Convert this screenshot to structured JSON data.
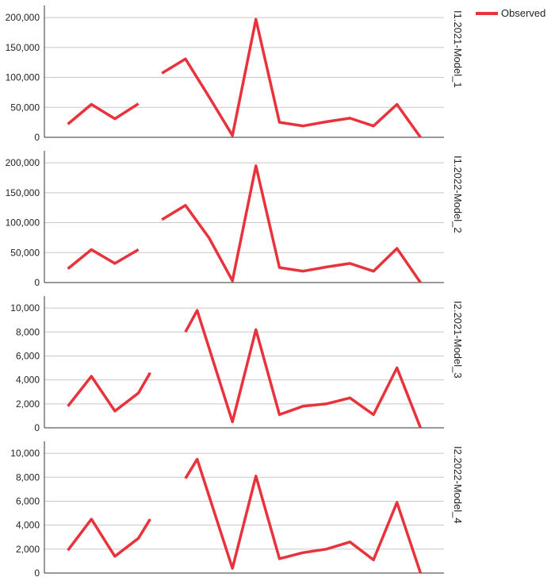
{
  "chart_data": {
    "type": "line",
    "legend": {
      "label": "Observed",
      "color": "#e8323c",
      "placement": "top-right"
    },
    "grid": true,
    "panels": [
      {
        "label": "I1.2021-Model_1",
        "ylim": [
          0,
          220000
        ],
        "yticks": [
          0,
          50000,
          100000,
          150000,
          200000
        ],
        "ytick_labels": [
          "0",
          "50,000",
          "100,000",
          "150,000",
          "200,000"
        ],
        "series": [
          {
            "name": "Observed",
            "segments": [
              [
                [
                  1,
                  22000
                ],
                [
                  2,
                  55000
                ],
                [
                  3,
                  31000
                ],
                [
                  4,
                  56000
                ]
              ],
              [
                [
                  5,
                  107000
                ],
                [
                  6,
                  131000
                ],
                [
                  7,
                  68000
                ],
                [
                  8,
                  3000
                ],
                [
                  9,
                  197000
                ],
                [
                  10,
                  25000
                ],
                [
                  11,
                  19000
                ],
                [
                  12,
                  26000
                ],
                [
                  13,
                  32000
                ],
                [
                  14,
                  19000
                ],
                [
                  15,
                  55000
                ],
                [
                  16,
                  0
                ]
              ]
            ]
          }
        ]
      },
      {
        "label": "I1.2022-Model_2",
        "ylim": [
          0,
          220000
        ],
        "yticks": [
          0,
          50000,
          100000,
          150000,
          200000
        ],
        "ytick_labels": [
          "0",
          "50,000",
          "100,000",
          "150,000",
          "200,000"
        ],
        "series": [
          {
            "name": "Observed",
            "segments": [
              [
                [
                  1,
                  23000
                ],
                [
                  2,
                  55000
                ],
                [
                  3,
                  32000
                ],
                [
                  4,
                  55000
                ]
              ],
              [
                [
                  5,
                  105000
                ],
                [
                  6,
                  129000
                ],
                [
                  7,
                  75000
                ],
                [
                  8,
                  3000
                ],
                [
                  9,
                  195000
                ],
                [
                  10,
                  25000
                ],
                [
                  11,
                  19000
                ],
                [
                  12,
                  26000
                ],
                [
                  13,
                  32000
                ],
                [
                  14,
                  19000
                ],
                [
                  15,
                  57000
                ],
                [
                  16,
                  0
                ]
              ]
            ]
          }
        ]
      },
      {
        "label": "I2.2021-Model_3",
        "ylim": [
          0,
          11000
        ],
        "yticks": [
          0,
          2000,
          4000,
          6000,
          8000,
          10000
        ],
        "ytick_labels": [
          "0",
          "2,000",
          "4,000",
          "6,000",
          "8,000",
          "10,000"
        ],
        "series": [
          {
            "name": "Observed",
            "segments": [
              [
                [
                  1,
                  1800
                ],
                [
                  2,
                  4300
                ],
                [
                  3,
                  1400
                ],
                [
                  4,
                  2900
                ],
                [
                  4.5,
                  4600
                ]
              ],
              [
                [
                  6,
                  8000
                ],
                [
                  6.5,
                  9800
                ],
                [
                  8,
                  500
                ],
                [
                  9,
                  8200
                ],
                [
                  10,
                  1100
                ],
                [
                  11,
                  1800
                ],
                [
                  12,
                  2000
                ],
                [
                  13,
                  2500
                ],
                [
                  14,
                  1100
                ],
                [
                  15,
                  5000
                ],
                [
                  16,
                  0
                ]
              ]
            ]
          }
        ]
      },
      {
        "label": "I2.2022-Model_4",
        "ylim": [
          0,
          11000
        ],
        "yticks": [
          0,
          2000,
          4000,
          6000,
          8000,
          10000
        ],
        "ytick_labels": [
          "0",
          "2,000",
          "4,000",
          "6,000",
          "8,000",
          "10,000"
        ],
        "series": [
          {
            "name": "Observed",
            "segments": [
              [
                [
                  1,
                  1900
                ],
                [
                  2,
                  4500
                ],
                [
                  3,
                  1400
                ],
                [
                  4,
                  2900
                ],
                [
                  4.5,
                  4500
                ]
              ],
              [
                [
                  6,
                  7900
                ],
                [
                  6.5,
                  9500
                ],
                [
                  8,
                  400
                ],
                [
                  9,
                  8100
                ],
                [
                  10,
                  1200
                ],
                [
                  11,
                  1700
                ],
                [
                  12,
                  2000
                ],
                [
                  13,
                  2600
                ],
                [
                  14,
                  1100
                ],
                [
                  15,
                  5900
                ],
                [
                  16,
                  0
                ]
              ]
            ]
          }
        ]
      }
    ],
    "xlim": [
      0,
      17
    ]
  }
}
